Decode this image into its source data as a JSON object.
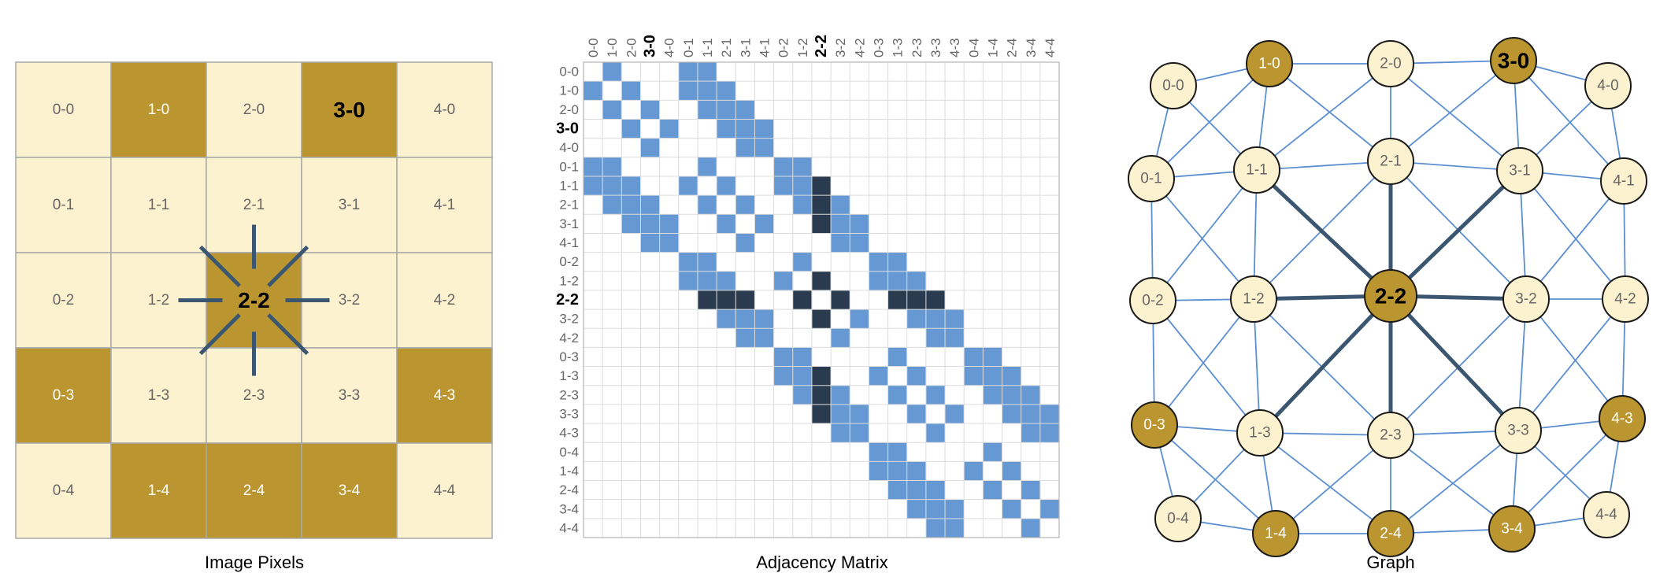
{
  "colors": {
    "light": "#fdf2cf",
    "dark": "#bb9630",
    "cell_border": "#a8a8a8",
    "matrix_edge": "#6699d4",
    "matrix_highlight": "#2a3b50",
    "grid_line": "#dcdcdc",
    "edge_light": "#5b8fd1",
    "edge_dark": "#3b5670",
    "node_stroke": "#1a1a1a",
    "label_gray": "#666666",
    "label_white": "#ffffff",
    "label_black": "#000000"
  },
  "nodes": [
    "0-0",
    "1-0",
    "2-0",
    "3-0",
    "4-0",
    "0-1",
    "1-1",
    "2-1",
    "3-1",
    "4-1",
    "0-2",
    "1-2",
    "2-2",
    "3-2",
    "4-2",
    "0-3",
    "1-3",
    "2-3",
    "3-3",
    "4-3",
    "0-4",
    "1-4",
    "2-4",
    "3-4",
    "4-4"
  ],
  "dark_nodes": [
    "1-0",
    "3-0",
    "2-2",
    "0-3",
    "4-3",
    "1-4",
    "2-4",
    "3-4"
  ],
  "bold_nodes": [
    "3-0",
    "2-2"
  ],
  "highlight_node": "2-2",
  "panels": {
    "pixels": {
      "caption": "Image Pixels"
    },
    "matrix": {
      "caption": "Adjacency Matrix"
    },
    "graph": {
      "caption": "Graph"
    }
  }
}
